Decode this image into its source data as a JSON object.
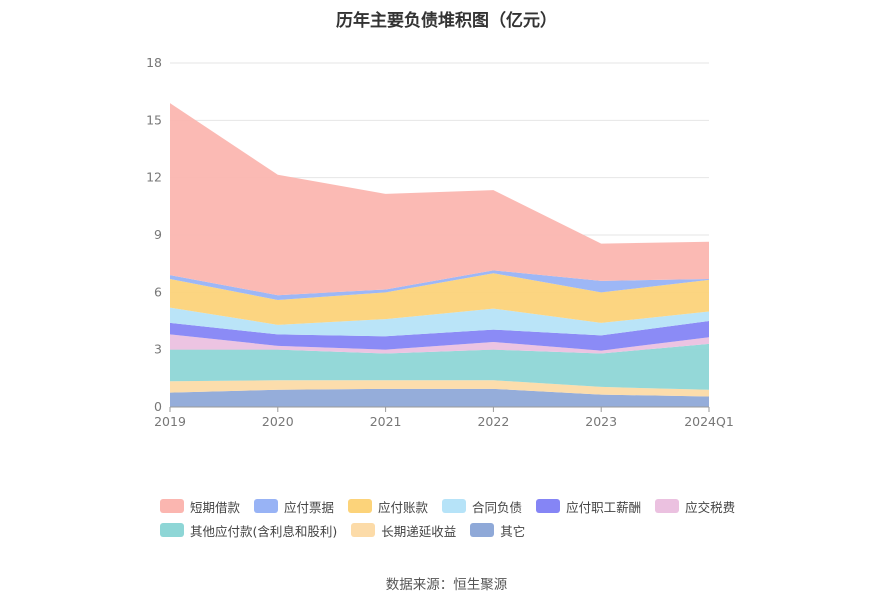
{
  "chart_data": {
    "type": "area",
    "stacked": true,
    "title": "历年主要负债堆积图（亿元）",
    "x": [
      "2019",
      "2020",
      "2021",
      "2022",
      "2023",
      "2024Q1"
    ],
    "y_ticks": [
      0,
      3,
      6,
      9,
      12,
      15,
      18
    ],
    "ylim": [
      0,
      18
    ],
    "grid": true,
    "legend_position": "bottom",
    "series": [
      {
        "name": "其它",
        "color": "#8fa9d8",
        "values": [
          0.75,
          0.9,
          0.95,
          0.95,
          0.65,
          0.55
        ]
      },
      {
        "name": "长期递延收益",
        "color": "#fcdba8",
        "values": [
          0.6,
          0.5,
          0.45,
          0.45,
          0.4,
          0.35
        ]
      },
      {
        "name": "其他应付款(含利息和股利)",
        "color": "#8ed6d6",
        "values": [
          1.65,
          1.6,
          1.4,
          1.6,
          1.75,
          2.4
        ]
      },
      {
        "name": "应交税费",
        "color": "#ebc1e0",
        "values": [
          0.8,
          0.2,
          0.2,
          0.4,
          0.15,
          0.35
        ]
      },
      {
        "name": "应付职工薪酬",
        "color": "#8585f5",
        "values": [
          0.6,
          0.6,
          0.7,
          0.65,
          0.8,
          0.85
        ]
      },
      {
        "name": "合同负债",
        "color": "#b6e3f8",
        "values": [
          0.8,
          0.5,
          0.9,
          1.1,
          0.65,
          0.5
        ]
      },
      {
        "name": "应付账款",
        "color": "#fcd37a",
        "values": [
          1.5,
          1.3,
          1.4,
          1.85,
          1.6,
          1.65
        ]
      },
      {
        "name": "应付票据",
        "color": "#98b3f5",
        "values": [
          0.2,
          0.25,
          0.15,
          0.15,
          0.6,
          0.05
        ]
      },
      {
        "name": "短期借款",
        "color": "#fbb6b0",
        "values": [
          9.0,
          6.3,
          5.0,
          4.2,
          1.95,
          1.95
        ]
      }
    ],
    "legend_rows": [
      [
        "短期借款",
        "应付票据",
        "应付账款",
        "合同负债",
        "应付职工薪酬",
        "应交税费"
      ],
      [
        "其他应付款(含利息和股利)",
        "长期递延收益",
        "其它"
      ]
    ],
    "source": "数据来源：恒生聚源"
  }
}
